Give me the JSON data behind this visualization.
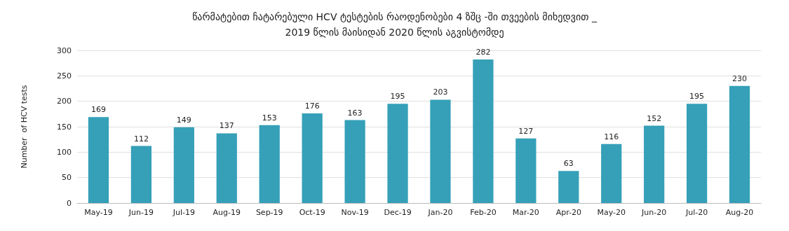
{
  "chart_data": {
    "type": "bar",
    "title": "წარმატებით ჩატარებული HCV ტესტების რაოდენობები 4 ზშც -ში თვეების მიხედვით _\n2019 წლის მაისიდან 2020 წლის აგვისტომდე",
    "ylabel": "Number  of HCV tests",
    "categories": [
      "May-19",
      "Jun-19",
      "Jul-19",
      "Aug-19",
      "Sep-19",
      "Oct-19",
      "Nov-19",
      "Dec-19",
      "Jan-20",
      "Feb-20",
      "Mar-20",
      "Apr-20",
      "May-20",
      "Jun-20",
      "Jul-20",
      "Aug-20"
    ],
    "values": [
      169,
      112,
      149,
      137,
      153,
      176,
      163,
      195,
      203,
      282,
      127,
      63,
      116,
      152,
      195,
      230
    ],
    "color": "#35a0b8",
    "ylim": [
      0,
      300
    ],
    "yticks": [
      0,
      50,
      100,
      150,
      200,
      250,
      300
    ],
    "grid": "y",
    "data_labels": true
  }
}
